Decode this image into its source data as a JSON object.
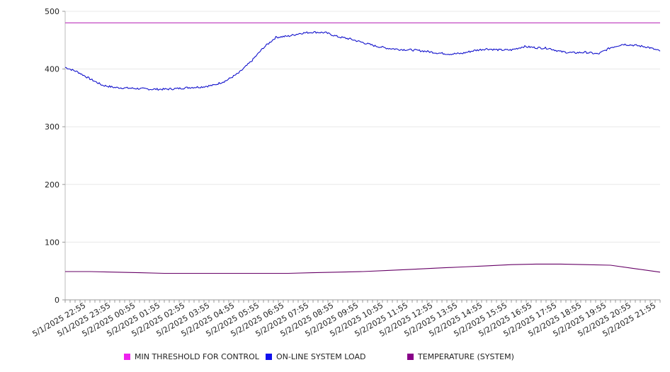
{
  "chart_data": {
    "type": "line",
    "title": "",
    "xlabel": "",
    "ylabel": "",
    "ylim": [
      0,
      500
    ],
    "yticks": [
      0,
      100,
      200,
      300,
      400,
      500
    ],
    "xlim": [
      0,
      24
    ],
    "xtick_labels": [
      "5/1/2025 22:55",
      "5/1/2025 23:55",
      "5/2/2025 00:55",
      "5/2/2025 01:55",
      "5/2/2025 02:55",
      "5/2/2025 03:55",
      "5/2/2025 04:55",
      "5/2/2025 05:55",
      "5/2/2025 06:55",
      "5/2/2025 07:55",
      "5/2/2025 08:55",
      "5/2/2025 09:55",
      "5/2/2025 10:55",
      "5/2/2025 11:55",
      "5/2/2025 12:55",
      "5/2/2025 13:55",
      "5/2/2025 14:55",
      "5/2/2025 15:55",
      "5/2/2025 16:55",
      "5/2/2025 17:55",
      "5/2/2025 18:55",
      "5/2/2025 19:55",
      "5/2/2025 20:55",
      "5/2/2025 21:55"
    ],
    "grid": "horizontal",
    "legend_position": "bottom",
    "series": [
      {
        "name": "MIN THRESHOLD FOR CONTROL",
        "color": "#bb33bb",
        "legend_color": "#ee22ee",
        "x": [
          0,
          24
        ],
        "values": [
          480,
          480
        ]
      },
      {
        "name": "ON-LINE SYSTEM LOAD",
        "color": "#1111cc",
        "legend_color": "#1111ee",
        "x": [
          0,
          0.5,
          1,
          1.5,
          2,
          2.5,
          3,
          3.5,
          4,
          4.5,
          5,
          5.5,
          6,
          6.5,
          7,
          7.5,
          8,
          8.5,
          9,
          9.5,
          10,
          10.5,
          11,
          11.5,
          12,
          12.5,
          13,
          13.5,
          14,
          14.5,
          15,
          15.5,
          16,
          16.5,
          17,
          17.5,
          18,
          18.5,
          19,
          19.5,
          20,
          20.5,
          21,
          21.5,
          22,
          22.5,
          23,
          23.5,
          24
        ],
        "values": [
          403,
          395,
          383,
          372,
          368,
          367,
          366,
          365,
          365,
          366,
          368,
          369,
          372,
          380,
          393,
          413,
          437,
          455,
          457,
          462,
          464,
          463,
          456,
          452,
          446,
          440,
          436,
          434,
          433,
          431,
          428,
          426,
          427,
          432,
          435,
          433,
          433,
          439,
          437,
          436,
          430,
          428,
          429,
          426,
          437,
          443,
          441,
          438,
          431
        ]
      },
      {
        "name": "TEMPERATURE (SYSTEM)",
        "color": "#660066",
        "legend_color": "#880088",
        "x": [
          0,
          1,
          2,
          3,
          4,
          5,
          6,
          7,
          8,
          9,
          10,
          11,
          12,
          13,
          14,
          15,
          16,
          17,
          18,
          19,
          20,
          21,
          22,
          23,
          24
        ],
        "values": [
          49,
          49,
          48,
          47,
          46,
          46,
          46,
          46,
          46,
          46,
          47,
          48,
          49,
          51,
          53,
          55,
          57,
          59,
          61,
          62,
          62,
          61,
          60,
          54,
          48
        ]
      }
    ]
  }
}
